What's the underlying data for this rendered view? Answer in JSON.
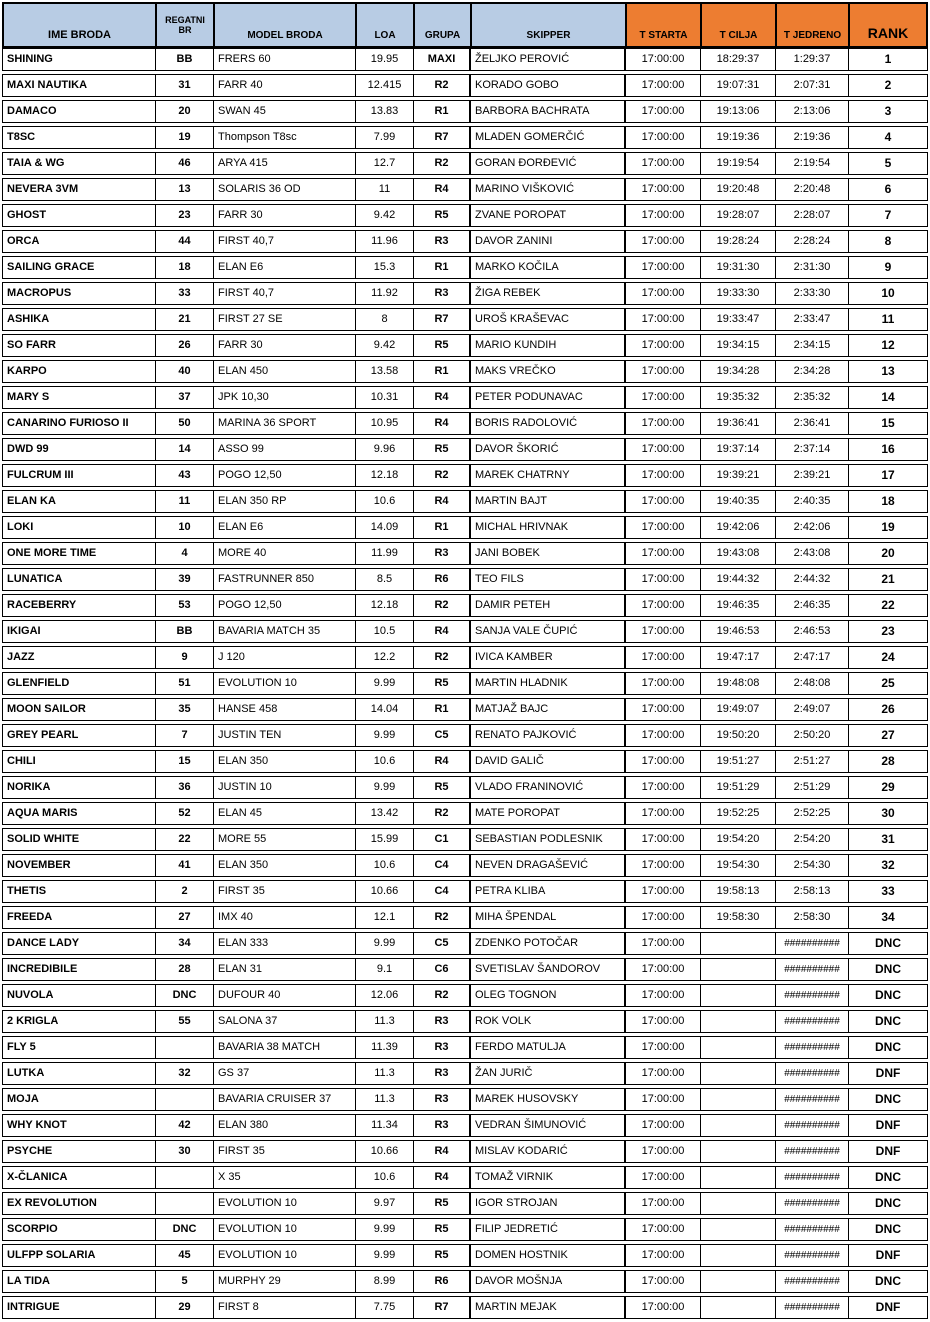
{
  "colors": {
    "header_blue": "#B8CCE4",
    "header_orange": "#ED7D31",
    "border": "#000000",
    "row_bg": "#FFFFFF"
  },
  "table": {
    "headers": [
      {
        "key": "ime-broda",
        "label": "IME BRODA"
      },
      {
        "key": "regatni-br",
        "label": "REGATNI BR"
      },
      {
        "key": "model-broda",
        "label": "MODEL BRODA"
      },
      {
        "key": "loa",
        "label": "LOA"
      },
      {
        "key": "grupa",
        "label": "GRUPA"
      },
      {
        "key": "skipper",
        "label": "SKIPPER"
      },
      {
        "key": "t-starta",
        "label": "T STARTA"
      },
      {
        "key": "t-cilja",
        "label": "T CILJA"
      },
      {
        "key": "t-jedreno",
        "label": "T JEDRENO"
      },
      {
        "key": "rank",
        "label": "RANK"
      }
    ],
    "overflow_marker": "##########",
    "rows": [
      [
        "SHINING",
        "BB",
        "FRERS 60",
        "19.95",
        "MAXI",
        "ŽELJKO PEROVIĆ",
        "17:00:00",
        "18:29:37",
        "1:29:37",
        "1"
      ],
      [
        "MAXI NAUTIKA",
        "31",
        "FARR 40",
        "12.415",
        "R2",
        "KORADO GOBO",
        "17:00:00",
        "19:07:31",
        "2:07:31",
        "2"
      ],
      [
        "DAMACO",
        "20",
        "SWAN 45",
        "13.83",
        "R1",
        "BARBORA BACHRATA",
        "17:00:00",
        "19:13:06",
        "2:13:06",
        "3"
      ],
      [
        "T8SC",
        "19",
        "Thompson T8sc",
        "7.99",
        "R7",
        "MLADEN GOMERČIĆ",
        "17:00:00",
        "19:19:36",
        "2:19:36",
        "4"
      ],
      [
        "TAIA & WG",
        "46",
        "ARYA 415",
        "12.7",
        "R2",
        "GORAN ĐORĐEVIĆ",
        "17:00:00",
        "19:19:54",
        "2:19:54",
        "5"
      ],
      [
        "NEVERA 3VM",
        "13",
        "SOLARIS 36 OD",
        "11",
        "R4",
        "MARINO VIŠKOVIĆ",
        "17:00:00",
        "19:20:48",
        "2:20:48",
        "6"
      ],
      [
        "GHOST",
        "23",
        "FARR 30",
        "9.42",
        "R5",
        "ZVANE POROPAT",
        "17:00:00",
        "19:28:07",
        "2:28:07",
        "7"
      ],
      [
        "ORCA",
        "44",
        "FIRST 40,7",
        "11.96",
        "R3",
        "DAVOR ZANINI",
        "17:00:00",
        "19:28:24",
        "2:28:24",
        "8"
      ],
      [
        "SAILING GRACE",
        "18",
        "ELAN E6",
        "15.3",
        "R1",
        "MARKO KOČILA",
        "17:00:00",
        "19:31:30",
        "2:31:30",
        "9"
      ],
      [
        "MACROPUS",
        "33",
        "FIRST 40,7",
        "11.92",
        "R3",
        "ŽIGA REBEK",
        "17:00:00",
        "19:33:30",
        "2:33:30",
        "10"
      ],
      [
        "ASHIKA",
        "21",
        "FIRST 27 SE",
        "8",
        "R7",
        "UROŠ KRAŠEVAC",
        "17:00:00",
        "19:33:47",
        "2:33:47",
        "11"
      ],
      [
        "SO FARR",
        "26",
        "FARR 30",
        "9.42",
        "R5",
        "MARIO KUNDIH",
        "17:00:00",
        "19:34:15",
        "2:34:15",
        "12"
      ],
      [
        "KARPO",
        "40",
        "ELAN 450",
        "13.58",
        "R1",
        "MAKS VREČKO",
        "17:00:00",
        "19:34:28",
        "2:34:28",
        "13"
      ],
      [
        "MARY S",
        "37",
        "JPK 10,30",
        "10.31",
        "R4",
        "PETER PODUNAVAC",
        "17:00:00",
        "19:35:32",
        "2:35:32",
        "14"
      ],
      [
        "CANARINO FURIOSO II",
        "50",
        "MARINA 36 SPORT",
        "10.95",
        "R4",
        "BORIS RADOLOVIĆ",
        "17:00:00",
        "19:36:41",
        "2:36:41",
        "15"
      ],
      [
        "DWD 99",
        "14",
        "ASSO 99",
        "9.96",
        "R5",
        "DAVOR ŠKORIĆ",
        "17:00:00",
        "19:37:14",
        "2:37:14",
        "16"
      ],
      [
        "FULCRUM III",
        "43",
        "POGO 12,50",
        "12.18",
        "R2",
        "MAREK CHATRNY",
        "17:00:00",
        "19:39:21",
        "2:39:21",
        "17"
      ],
      [
        "ELAN KA",
        "11",
        "ELAN 350 RP",
        "10.6",
        "R4",
        "MARTIN BAJT",
        "17:00:00",
        "19:40:35",
        "2:40:35",
        "18"
      ],
      [
        "LOKI",
        "10",
        "ELAN E6",
        "14.09",
        "R1",
        "MICHAL HRIVNAK",
        "17:00:00",
        "19:42:06",
        "2:42:06",
        "19"
      ],
      [
        "ONE MORE TIME",
        "4",
        "MORE 40",
        "11.99",
        "R3",
        "JANI BOBEK",
        "17:00:00",
        "19:43:08",
        "2:43:08",
        "20"
      ],
      [
        "LUNATICA",
        "39",
        "FASTRUNNER 850",
        "8.5",
        "R6",
        "TEO FILS",
        "17:00:00",
        "19:44:32",
        "2:44:32",
        "21"
      ],
      [
        "RACEBERRY",
        "53",
        "POGO 12,50",
        "12.18",
        "R2",
        "DAMIR PETEH",
        "17:00:00",
        "19:46:35",
        "2:46:35",
        "22"
      ],
      [
        "IKIGAI",
        "BB",
        "BAVARIA MATCH 35",
        "10.5",
        "R4",
        "SANJA VALE ČUPIĆ",
        "17:00:00",
        "19:46:53",
        "2:46:53",
        "23"
      ],
      [
        "JAZZ",
        "9",
        "J 120",
        "12.2",
        "R2",
        "IVICA KAMBER",
        "17:00:00",
        "19:47:17",
        "2:47:17",
        "24"
      ],
      [
        "GLENFIELD",
        "51",
        "EVOLUTION 10",
        "9.99",
        "R5",
        "MARTIN HLADNIK",
        "17:00:00",
        "19:48:08",
        "2:48:08",
        "25"
      ],
      [
        "MOON SAILOR",
        "35",
        "HANSE 458",
        "14.04",
        "R1",
        "MATJAŽ BAJC",
        "17:00:00",
        "19:49:07",
        "2:49:07",
        "26"
      ],
      [
        "GREY PEARL",
        "7",
        "JUSTIN TEN",
        "9.99",
        "C5",
        "RENATO PAJKOVIĆ",
        "17:00:00",
        "19:50:20",
        "2:50:20",
        "27"
      ],
      [
        "CHILI",
        "15",
        "ELAN 350",
        "10.6",
        "R4",
        "DAVID GALIČ",
        "17:00:00",
        "19:51:27",
        "2:51:27",
        "28"
      ],
      [
        "NORIKA",
        "36",
        "JUSTIN 10",
        "9.99",
        "R5",
        "VLADO FRANINOVIĆ",
        "17:00:00",
        "19:51:29",
        "2:51:29",
        "29"
      ],
      [
        "AQUA MARIS",
        "52",
        "ELAN 45",
        "13.42",
        "R2",
        "MATE POROPAT",
        "17:00:00",
        "19:52:25",
        "2:52:25",
        "30"
      ],
      [
        "SOLID WHITE",
        "22",
        "MORE 55",
        "15.99",
        "C1",
        "SEBASTIAN PODLESNIK",
        "17:00:00",
        "19:54:20",
        "2:54:20",
        "31"
      ],
      [
        "NOVEMBER",
        "41",
        "ELAN 350",
        "10.6",
        "C4",
        "NEVEN DRAGAŠEVIĆ",
        "17:00:00",
        "19:54:30",
        "2:54:30",
        "32"
      ],
      [
        "THETIS",
        "2",
        "FIRST 35",
        "10.66",
        "C4",
        "PETRA KLIBA",
        "17:00:00",
        "19:58:13",
        "2:58:13",
        "33"
      ],
      [
        "FREEDA",
        "27",
        "IMX 40",
        "12.1",
        "R2",
        "MIHA ŠPENDAL",
        "17:00:00",
        "19:58:30",
        "2:58:30",
        "34"
      ],
      [
        "DANCE LADY",
        "34",
        "ELAN 333",
        "9.99",
        "C5",
        "ZDENKO POTOČAR",
        "17:00:00",
        "",
        "##########",
        "DNC"
      ],
      [
        "INCREDIBILE",
        "28",
        "ELAN 31",
        "9.1",
        "C6",
        "SVETISLAV ŠANDOROV",
        "17:00:00",
        "",
        "##########",
        "DNC"
      ],
      [
        "NUVOLA",
        "DNC",
        "DUFOUR 40",
        "12.06",
        "R2",
        "OLEG TOGNON",
        "17:00:00",
        "",
        "##########",
        "DNC"
      ],
      [
        "2 KRIGLA",
        "55",
        "SALONA 37",
        "11.3",
        "R3",
        "ROK VOLK",
        "17:00:00",
        "",
        "##########",
        "DNC"
      ],
      [
        "FLY 5",
        "",
        "BAVARIA 38 MATCH",
        "11.39",
        "R3",
        "FERDO MATULJA",
        "17:00:00",
        "",
        "##########",
        "DNC"
      ],
      [
        "LUTKA",
        "32",
        "GS 37",
        "11.3",
        "R3",
        "ŽAN JURIČ",
        "17:00:00",
        "",
        "##########",
        "DNF"
      ],
      [
        "MOJA",
        "",
        "BAVARIA CRUISER 37",
        "11.3",
        "R3",
        "MAREK HUSOVSKY",
        "17:00:00",
        "",
        "##########",
        "DNC"
      ],
      [
        "WHY KNOT",
        "42",
        "ELAN 380",
        "11.34",
        "R3",
        "VEDRAN ŠIMUNOVIĆ",
        "17:00:00",
        "",
        "##########",
        "DNF"
      ],
      [
        "PSYCHE",
        "30",
        "FIRST 35",
        "10.66",
        "R4",
        "MISLAV KODARIĆ",
        "17:00:00",
        "",
        "##########",
        "DNF"
      ],
      [
        "X-ČLANICA",
        "",
        "X 35",
        "10.6",
        "R4",
        "TOMAŽ VIRNIK",
        "17:00:00",
        "",
        "##########",
        "DNC"
      ],
      [
        "EX REVOLUTION",
        "",
        "EVOLUTION 10",
        "9.97",
        "R5",
        "IGOR STROJAN",
        "17:00:00",
        "",
        "##########",
        "DNC"
      ],
      [
        "SCORPIO",
        "DNC",
        "EVOLUTION 10",
        "9.99",
        "R5",
        "FILIP JEDRETIĆ",
        "17:00:00",
        "",
        "##########",
        "DNC"
      ],
      [
        "ULFPP SOLARIA",
        "45",
        "EVOLUTION 10",
        "9.99",
        "R5",
        "DOMEN HOSTNIK",
        "17:00:00",
        "",
        "##########",
        "DNF"
      ],
      [
        "LA TIDA",
        "5",
        "MURPHY 29",
        "8.99",
        "R6",
        "DAVOR MOŠNJA",
        "17:00:00",
        "",
        "##########",
        "DNC"
      ],
      [
        "INTRIGUE",
        "29",
        "FIRST 8",
        "7.75",
        "R7",
        "MARTIN MEJAK",
        "17:00:00",
        "",
        "##########",
        "DNF"
      ]
    ]
  }
}
